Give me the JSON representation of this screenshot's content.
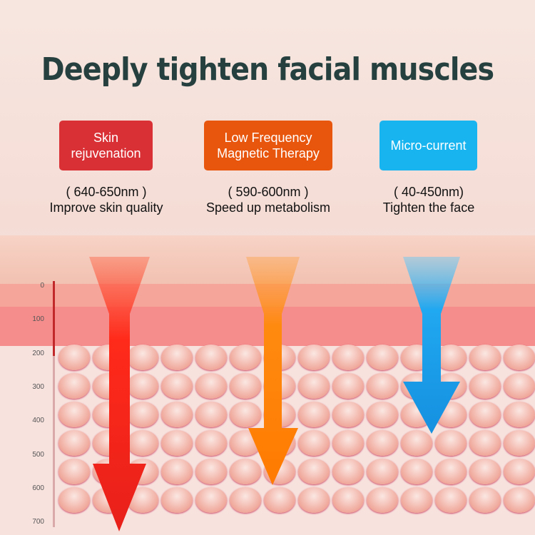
{
  "title": "Deeply tighten facial muscles",
  "modes": [
    {
      "label": "Skin rejuvenation",
      "range": "( 640-650nm )",
      "benefit": "Improve skin quality",
      "color": "#d93035"
    },
    {
      "label": "Low Frequency Magnetic Therapy",
      "range": "( 590-600nm )",
      "benefit": "Speed up metabolism",
      "color": "#e8560e"
    },
    {
      "label": "Micro-current",
      "range": "( 40-450nm)",
      "benefit": "Tighten the face",
      "color": "#18b4ef"
    }
  ],
  "depth_scale": [
    "0",
    "100",
    "200",
    "300",
    "400",
    "500",
    "600",
    "700"
  ]
}
